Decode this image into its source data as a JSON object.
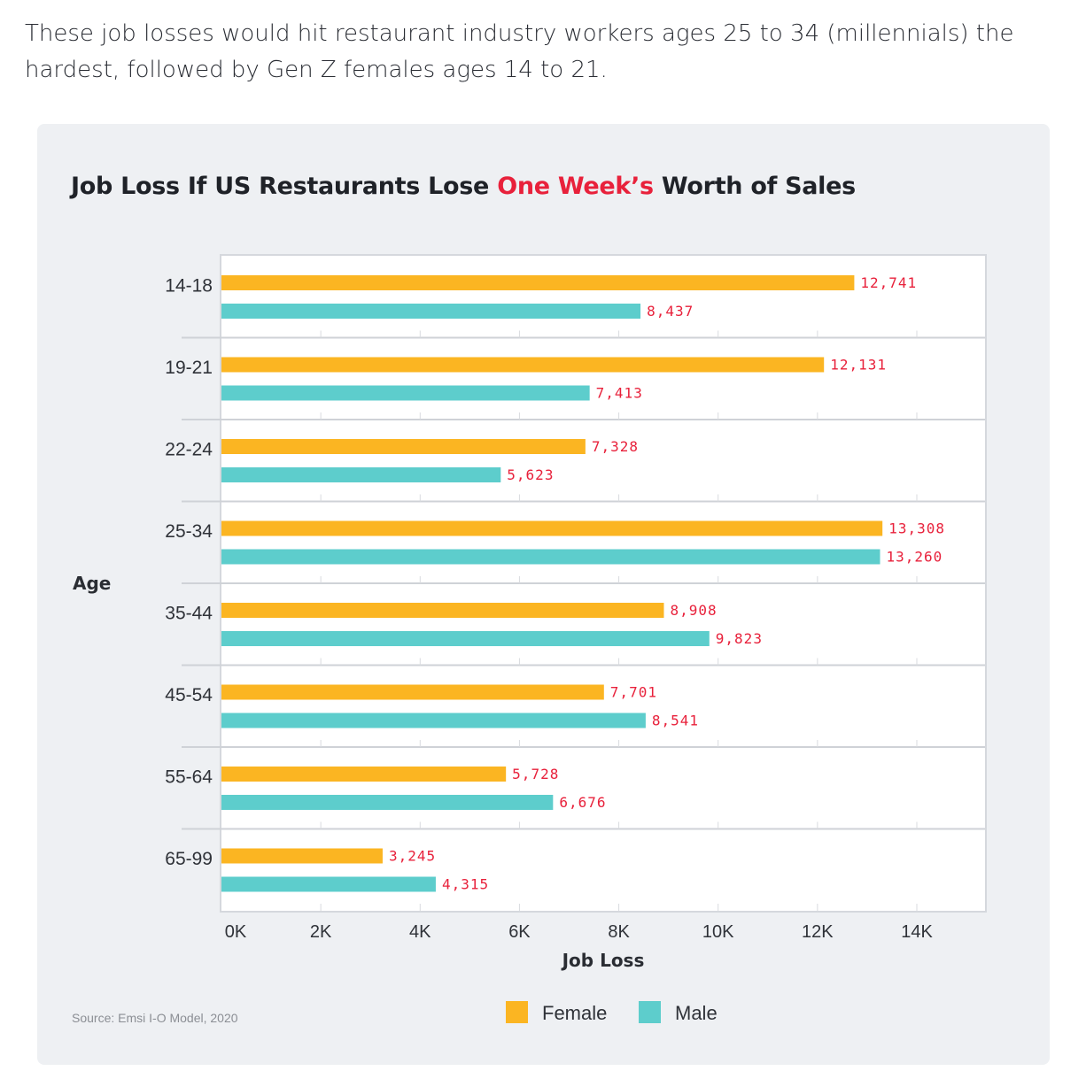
{
  "intro_text": "These job losses would hit restaurant industry workers ages 25 to 34 (millennials) the hardest, followed by Gen Z females ages 14 to 21.",
  "source": "Source: Emsi I-O Model, 2020",
  "colors": {
    "female": "#fbb522",
    "male": "#5dcdcc",
    "accent": "#e8213b",
    "background": "#eef0f3"
  },
  "chart_data": {
    "type": "bar",
    "orientation": "horizontal",
    "title_parts": [
      "Job Loss If US Restaurants Lose ",
      "One Week’s",
      " Worth of Sales"
    ],
    "xlabel": "Job Loss",
    "ylabel": "Age",
    "categories": [
      "14-18",
      "19-21",
      "22-24",
      "25-34",
      "35-44",
      "45-54",
      "55-64",
      "65-99"
    ],
    "series": [
      {
        "name": "Female",
        "color": "#fbb522",
        "values": [
          12741,
          12131,
          7328,
          13308,
          8908,
          7701,
          5728,
          3245
        ],
        "labels": [
          "12,741",
          "12,131",
          "7,328",
          "13,308",
          "8,908",
          "7,701",
          "5,728",
          "3,245"
        ]
      },
      {
        "name": "Male",
        "color": "#5dcdcc",
        "values": [
          8437,
          7413,
          5623,
          13260,
          9823,
          8541,
          6676,
          4315
        ],
        "labels": [
          "8,437",
          "7,413",
          "5,623",
          "13,260",
          "9,823",
          "8,541",
          "6,676",
          "4,315"
        ]
      }
    ],
    "xticks": [
      0,
      2000,
      4000,
      6000,
      8000,
      10000,
      12000,
      14000
    ],
    "xtick_labels": [
      "0K",
      "2K",
      "4K",
      "6K",
      "8K",
      "10K",
      "12K",
      "14K"
    ],
    "xlim": [
      0,
      15500
    ],
    "legend_position": "bottom-center",
    "grid": "horizontal separators between age groups"
  }
}
